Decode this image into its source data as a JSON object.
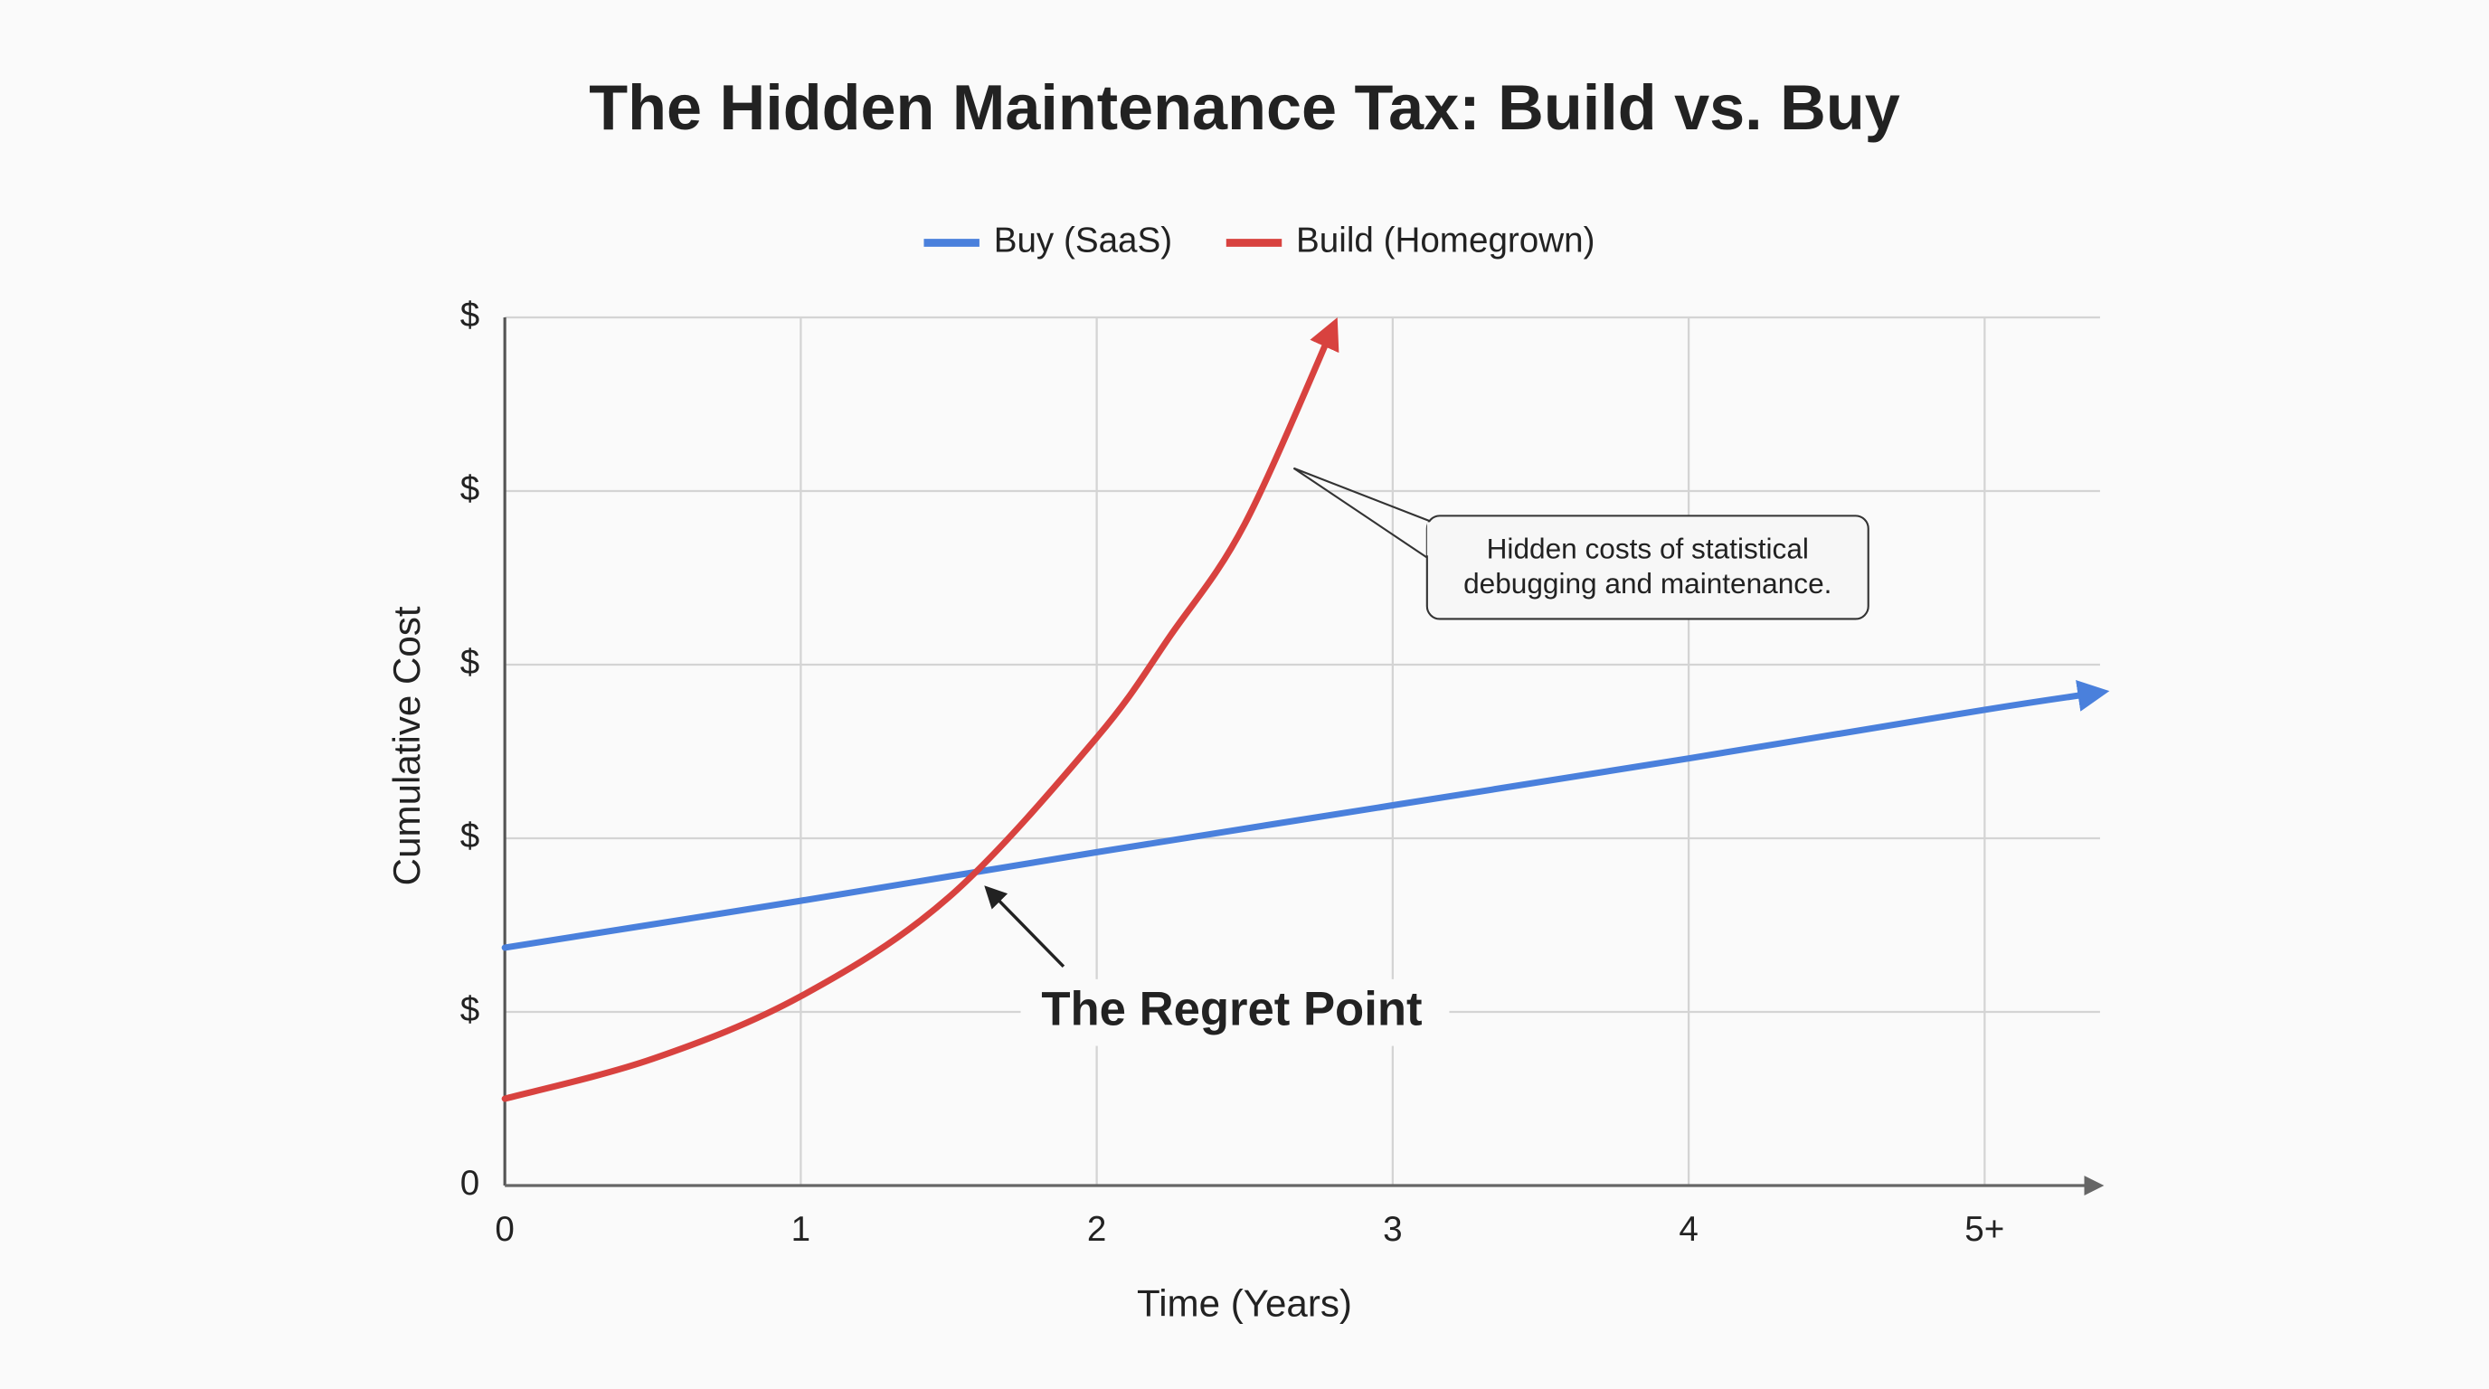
{
  "chart_data": {
    "type": "line",
    "title": "The Hidden Maintenance Tax: Build vs. Buy",
    "x_label": "Time (Years)",
    "y_label": "Cumulative Cost",
    "xlim": [
      0,
      5.39
    ],
    "ylim": [
      0,
      5
    ],
    "xticks": [
      0,
      1,
      2,
      3,
      4,
      {
        "value": 5,
        "label": "5+"
      }
    ],
    "yticks": [
      0,
      {
        "value": 1,
        "label": "$"
      },
      {
        "value": 2,
        "label": "$"
      },
      {
        "value": 3,
        "label": "$"
      },
      {
        "value": 4,
        "label": "$"
      },
      {
        "value": 5,
        "label": "$"
      }
    ],
    "grid": true,
    "legend": "top",
    "series": [
      {
        "name": "Buy (SaaS)",
        "color": "#4a80dc",
        "x": [
          0,
          1,
          2,
          3,
          4,
          5,
          5.39
        ],
        "values": [
          1.37,
          1.64,
          1.92,
          2.19,
          2.46,
          2.74,
          2.84
        ]
      },
      {
        "name": "Build (Homegrown)",
        "color": "#d8423f",
        "x": [
          0,
          0.5,
          1,
          1.5,
          2,
          2.25,
          2.5,
          2.8
        ],
        "values": [
          0.5,
          0.73,
          1.09,
          1.66,
          2.58,
          3.17,
          3.81,
          4.95
        ]
      }
    ],
    "annotations": {
      "callout": [
        "Hidden costs of statistical",
        "debugging and maintenance."
      ],
      "regret_point": "The Regret Point"
    }
  }
}
